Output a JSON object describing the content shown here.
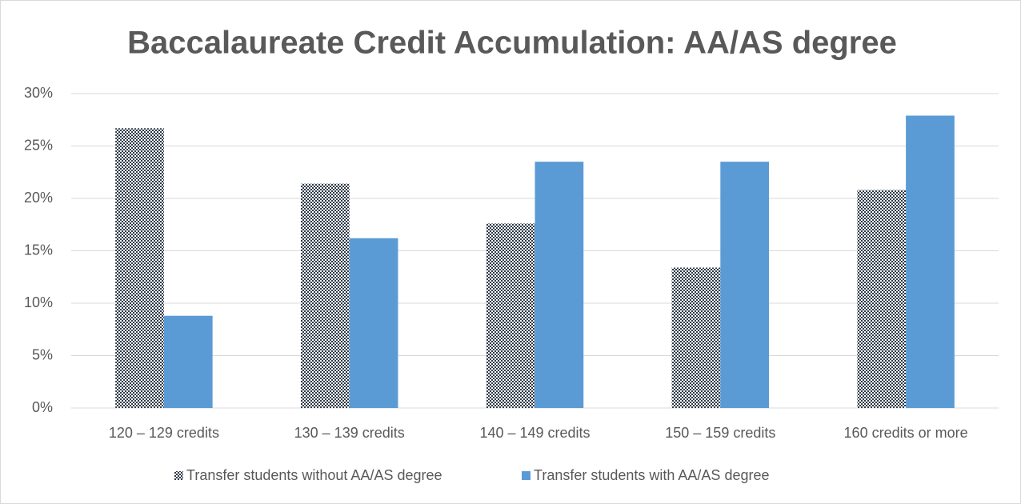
{
  "chart_data": {
    "type": "bar",
    "title": "Baccalaureate Credit Accumulation: AA/AS degree",
    "categories": [
      "120 – 129 credits",
      "130 – 139 credits",
      "140 – 149 credits",
      "150 – 159 credits",
      "160 credits or more"
    ],
    "series": [
      {
        "name": "Transfer students without AA/AS degree",
        "color": "#2f3b4a",
        "values": [
          26.7,
          21.4,
          17.6,
          13.4,
          20.8
        ]
      },
      {
        "name": "Transfer students with AA/AS degree",
        "color": "#5b9bd5",
        "values": [
          8.8,
          16.2,
          23.5,
          23.5,
          27.9
        ]
      }
    ],
    "ylim": [
      0,
      30
    ],
    "yticks": [
      {
        "value": 0,
        "label": "0%"
      },
      {
        "value": 5,
        "label": "5%"
      },
      {
        "value": 10,
        "label": "10%"
      },
      {
        "value": 15,
        "label": "15%"
      },
      {
        "value": 20,
        "label": "20%"
      },
      {
        "value": 25,
        "label": "25%"
      },
      {
        "value": 30,
        "label": "30%"
      }
    ],
    "grid": true,
    "legend": "bottom"
  }
}
